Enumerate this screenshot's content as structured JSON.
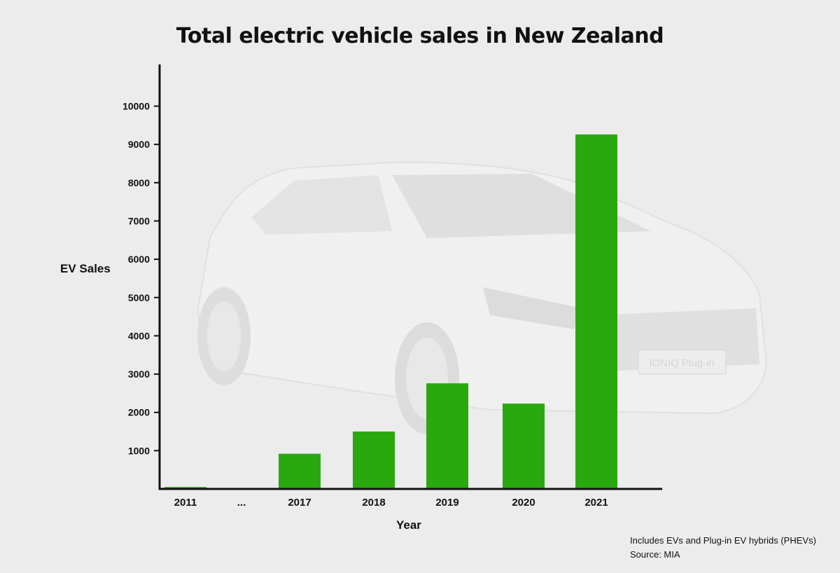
{
  "title": "Total electric vehicle sales in New Zealand",
  "footnote": "Includes EVs and Plug-in EV hybrids (PHEVs)",
  "source": "Source: MIA",
  "background_image_text": "IONIQ Plug-in",
  "colors": {
    "bar": "#2aa90e",
    "axis": "#111111",
    "background": "#ececec"
  },
  "chart_data": {
    "type": "bar",
    "categories": [
      "2011",
      "...",
      "2017",
      "2018",
      "2019",
      "2020",
      "2021"
    ],
    "values": [
      50,
      null,
      920,
      1500,
      2760,
      2230,
      9260
    ],
    "xlabel": "Year",
    "ylabel": "EV Sales",
    "ylim": [
      0,
      11000
    ],
    "yticks": [
      1000,
      2000,
      3000,
      4000,
      5000,
      6000,
      7000,
      8000,
      9000,
      10000
    ],
    "grid": false
  }
}
